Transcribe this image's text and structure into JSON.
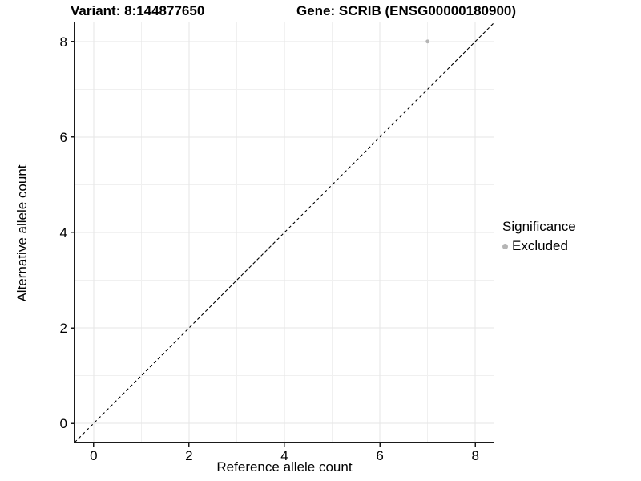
{
  "figure": {
    "title_left": "Variant: 8:144877650",
    "title_right": "Gene: SCRIB (ENSG00000180900)"
  },
  "axes": {
    "x_label": "Reference allele count",
    "y_label": "Alternative allele count"
  },
  "legend": {
    "title": "Significance",
    "items": [
      {
        "label": "Excluded",
        "color": "#b5b5b5"
      }
    ]
  },
  "chart_data": {
    "type": "scatter",
    "title": "Variant: 8:144877650    Gene: SCRIB (ENSG00000180900)",
    "xlabel": "Reference allele count",
    "ylabel": "Alternative allele count",
    "xlim": [
      -0.4,
      8.4
    ],
    "ylim": [
      -0.4,
      8.4
    ],
    "xticks": [
      0,
      2,
      4,
      6,
      8
    ],
    "yticks": [
      0,
      2,
      4,
      6,
      8
    ],
    "x_minor_gridlines": [
      1,
      3,
      5,
      7
    ],
    "y_minor_gridlines": [
      1,
      3,
      5,
      7
    ],
    "grid": true,
    "legend_position": "right",
    "series": [
      {
        "name": "Excluded",
        "color": "#b5b5b5",
        "points": [
          [
            7,
            8
          ]
        ]
      }
    ],
    "reference_line": {
      "type": "identity",
      "style": "dashed",
      "color": "#000000",
      "from": [
        -0.4,
        -0.4
      ],
      "to": [
        8.4,
        8.4
      ]
    },
    "colors": {
      "grid_major": "#e6e6e6",
      "grid_minor": "#f0f0f0",
      "axis_line": "#1a1a1a",
      "tick_label": "#000000"
    }
  }
}
